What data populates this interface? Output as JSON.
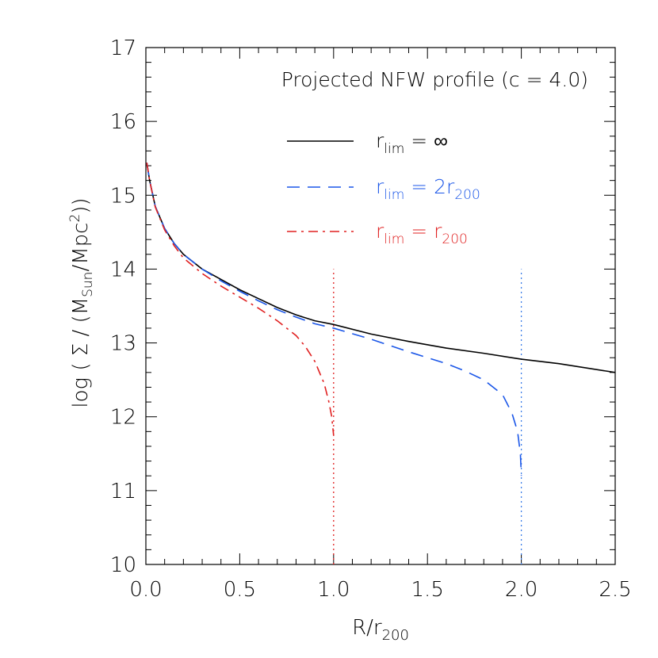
{
  "chart_data": {
    "type": "line",
    "title": "Projected NFW profile (c = 4.0)",
    "xlabel": "R/r200",
    "xlabel_parts": {
      "main": "R/r",
      "sub": "200"
    },
    "ylabel": "log ( Σ / (M_Sun/Mpc²))",
    "ylabel_parts": {
      "pre": "log ( Σ / (M",
      "sub": "Sun",
      "mid": "/Mpc",
      "sup": "2",
      "post": "))"
    },
    "xlim": [
      0.0,
      2.5
    ],
    "ylim": [
      10,
      17
    ],
    "xticks": [
      "0.0",
      "0.5",
      "1.0",
      "1.5",
      "2.0",
      "2.5"
    ],
    "yticks": [
      "10",
      "11",
      "12",
      "13",
      "14",
      "15",
      "16",
      "17"
    ],
    "grid": false,
    "legend_position": "top-right",
    "series": [
      {
        "name": "r_lim = ∞",
        "label_parts": {
          "pre": "r",
          "sub": "lim",
          "post": " = ∞",
          "post_sub": ""
        },
        "color": "#000000",
        "dash": "solid",
        "x": [
          0.005,
          0.02,
          0.05,
          0.1,
          0.15,
          0.2,
          0.3,
          0.4,
          0.5,
          0.6,
          0.7,
          0.8,
          0.9,
          1.0,
          1.2,
          1.4,
          1.6,
          1.8,
          2.0,
          2.2,
          2.5
        ],
        "y": [
          15.44,
          15.2,
          14.85,
          14.55,
          14.35,
          14.2,
          14.0,
          13.86,
          13.72,
          13.6,
          13.48,
          13.38,
          13.3,
          13.25,
          13.12,
          13.02,
          12.93,
          12.86,
          12.78,
          12.72,
          12.6
        ]
      },
      {
        "name": "r_lim = 2r200",
        "label_parts": {
          "pre": "r",
          "sub": "lim",
          "post": " = 2r",
          "post_sub": "200"
        },
        "color": "#1a56e8",
        "dash": "long-dash",
        "x": [
          0.005,
          0.02,
          0.05,
          0.1,
          0.15,
          0.2,
          0.3,
          0.4,
          0.5,
          0.6,
          0.7,
          0.8,
          0.9,
          1.0,
          1.2,
          1.4,
          1.6,
          1.7,
          1.8,
          1.9,
          1.95,
          1.98,
          1.995,
          2.0
        ],
        "y": [
          15.44,
          15.2,
          14.85,
          14.55,
          14.35,
          14.2,
          14.0,
          13.84,
          13.7,
          13.57,
          13.45,
          13.35,
          13.26,
          13.2,
          13.05,
          12.88,
          12.72,
          12.62,
          12.5,
          12.3,
          12.05,
          11.8,
          11.5,
          11.2
        ]
      },
      {
        "name": "r_lim = r200",
        "label_parts": {
          "pre": "r",
          "sub": "lim",
          "post": " = r",
          "post_sub": "200"
        },
        "color": "#e02020",
        "dash": "dash-dot",
        "x": [
          0.005,
          0.02,
          0.05,
          0.1,
          0.15,
          0.2,
          0.3,
          0.4,
          0.5,
          0.6,
          0.7,
          0.8,
          0.85,
          0.9,
          0.95,
          0.975,
          0.99,
          1.0
        ],
        "y": [
          15.44,
          15.2,
          14.84,
          14.53,
          14.32,
          14.15,
          13.94,
          13.77,
          13.62,
          13.47,
          13.3,
          13.1,
          12.95,
          12.75,
          12.45,
          12.2,
          12.0,
          11.75
        ]
      }
    ],
    "vertical_lines": [
      {
        "x": 1.0,
        "y_top": 14.0,
        "color": "#e02020",
        "dash": "dotted"
      },
      {
        "x": 2.0,
        "y_top": 14.0,
        "color": "#3a7de8",
        "dash": "dotted"
      }
    ]
  }
}
